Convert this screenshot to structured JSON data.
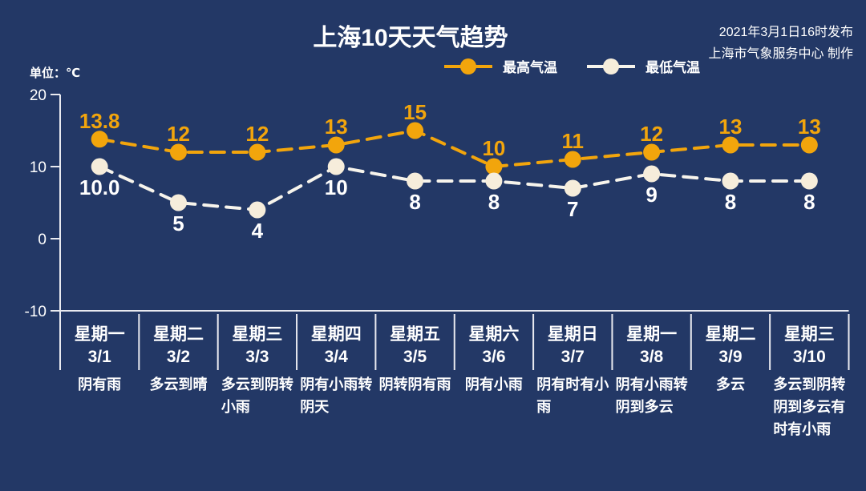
{
  "colors": {
    "background": "#233866",
    "axis": "#E9EAF0",
    "high_temp": "#F2A50C",
    "low_temp_marker": "#F6EDDB",
    "low_temp_line": "#F7F4EC",
    "text": "#FFFFFF"
  },
  "header": {
    "publish_time": "2021年3月1日16时发布",
    "producer": "上海市气象服务中心 制作"
  },
  "chart_data": {
    "type": "line",
    "title": "上海10天天气趋势",
    "unit_label": "单位：℃",
    "xlabel": "",
    "ylabel": "℃",
    "ylim": [
      -10,
      20
    ],
    "yticks": [
      20,
      10,
      0,
      -10
    ],
    "grid": false,
    "legend_position": "top-center",
    "categories": [
      {
        "weekday": "星期一",
        "date": "3/1",
        "weather": "阴有雨"
      },
      {
        "weekday": "星期二",
        "date": "3/2",
        "weather": "多云到晴"
      },
      {
        "weekday": "星期三",
        "date": "3/3",
        "weather": "多云到阴转小雨"
      },
      {
        "weekday": "星期四",
        "date": "3/4",
        "weather": "阴有小雨转阴天"
      },
      {
        "weekday": "星期五",
        "date": "3/5",
        "weather": "阴转阴有雨"
      },
      {
        "weekday": "星期六",
        "date": "3/6",
        "weather": "阴有小雨"
      },
      {
        "weekday": "星期日",
        "date": "3/7",
        "weather": "阴有时有小雨"
      },
      {
        "weekday": "星期一",
        "date": "3/8",
        "weather": "阴有小雨转阴到多云"
      },
      {
        "weekday": "星期二",
        "date": "3/9",
        "weather": "多云"
      },
      {
        "weekday": "星期三",
        "date": "3/10",
        "weather": "多云到阴转阴到多云有时有小雨"
      }
    ],
    "series": [
      {
        "key": "high-temp",
        "name": "最高气温",
        "color": "#F2A50C",
        "line_color": "#F2A50C",
        "values": [
          13.8,
          12,
          12,
          13,
          15,
          10,
          11,
          12,
          13,
          13
        ],
        "labels": [
          "13.8",
          "12",
          "12",
          "13",
          "15",
          "10",
          "11",
          "12",
          "13",
          "13"
        ],
        "label_position": "above"
      },
      {
        "key": "low-temp",
        "name": "最低气温",
        "color": "#F6EDDB",
        "line_color": "#F7F4EC",
        "values": [
          10.0,
          5,
          4,
          10,
          8,
          8,
          7,
          9,
          8,
          8
        ],
        "labels": [
          "10.0",
          "5",
          "4",
          "10",
          "8",
          "8",
          "7",
          "9",
          "8",
          "8"
        ],
        "label_position": "below"
      }
    ]
  }
}
